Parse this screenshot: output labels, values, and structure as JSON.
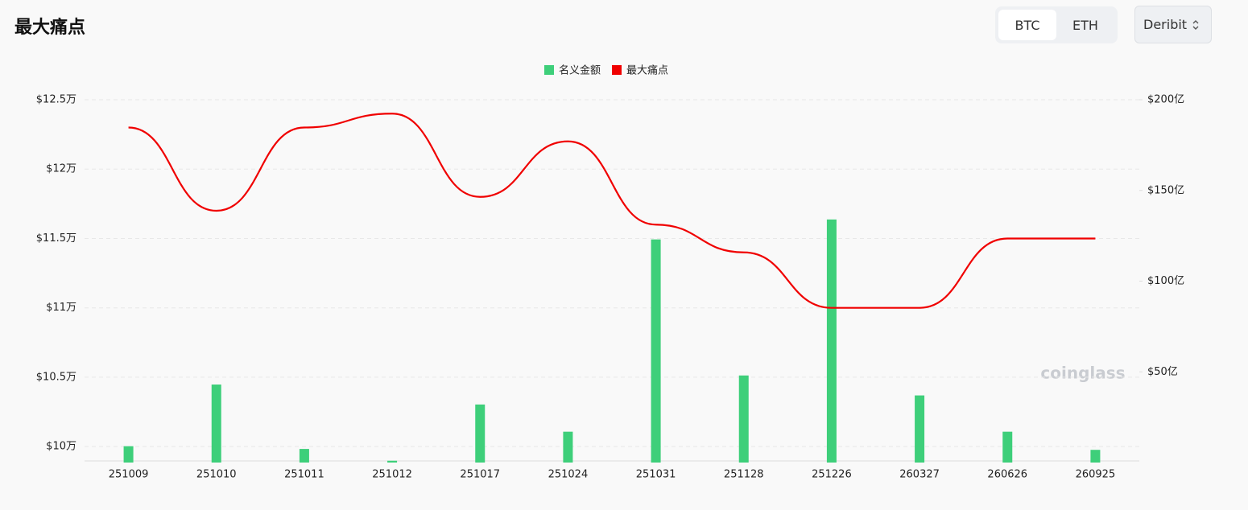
{
  "header": {
    "title": "最大痛点",
    "coins": [
      "BTC",
      "ETH"
    ],
    "exchange": "Deribit"
  },
  "watermark": "coinglass",
  "chart_data": {
    "type": "bar",
    "categories": [
      "251009",
      "251010",
      "251011",
      "251012",
      "251017",
      "251024",
      "251031",
      "251128",
      "251226",
      "260327",
      "260626",
      "260925"
    ],
    "series": [
      {
        "name": "名义金额",
        "type": "bar",
        "color": "#3ecf7a",
        "axis": "y2",
        "values": [
          9,
          43,
          7.5,
          1,
          32,
          17,
          123,
          48,
          134,
          37,
          17,
          7
        ]
      },
      {
        "name": "最大痛点",
        "type": "line",
        "color": "#f00000",
        "values": [
          123000,
          117000,
          123000,
          124000,
          118000,
          122000,
          116000,
          114000,
          110000,
          110000,
          115000,
          115000
        ]
      }
    ],
    "ylim": [
      98850,
      125000
    ],
    "yticks": [
      {
        "value": 100000,
        "label": "$10万"
      },
      {
        "value": 105000,
        "label": "$10.5万"
      },
      {
        "value": 110000,
        "label": "$11万"
      },
      {
        "value": 115000,
        "label": "$11.5万"
      },
      {
        "value": 120000,
        "label": "$12万"
      },
      {
        "value": 125000,
        "label": "$12.5万"
      }
    ],
    "y2lim": [
      0,
      200
    ],
    "y2ticks": [
      {
        "value": 50,
        "label": "$50亿"
      },
      {
        "value": 100,
        "label": "$100亿"
      },
      {
        "value": 150,
        "label": "$150亿"
      },
      {
        "value": 200,
        "label": "$200亿"
      }
    ],
    "grid": true
  }
}
